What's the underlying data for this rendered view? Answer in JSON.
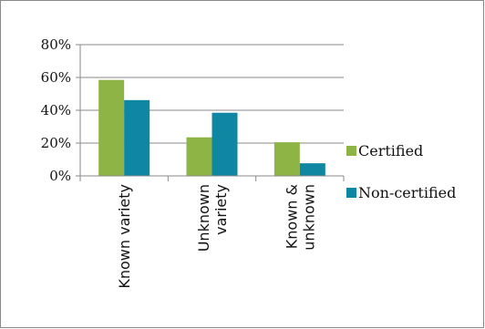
{
  "chart_data": {
    "type": "bar",
    "title": "",
    "xlabel": "",
    "ylabel": "",
    "categories": [
      "Known variety",
      "Unknown variety",
      "Known & unknown"
    ],
    "category_label_lines": [
      [
        "Known variety"
      ],
      [
        "Unknown",
        "variety"
      ],
      [
        "Known &",
        "unknown"
      ]
    ],
    "series": [
      {
        "name": "Certified",
        "color": "#8DB444",
        "values": [
          0.585,
          0.235,
          0.205
        ]
      },
      {
        "name": "Non-certified",
        "color": "#0F87A2",
        "values": [
          0.462,
          0.385,
          0.077
        ]
      }
    ],
    "ylim": [
      0,
      0.8
    ],
    "yticks": [
      0,
      0.2,
      0.4,
      0.6,
      0.8
    ],
    "ytick_labels": [
      "0%",
      "20%",
      "40%",
      "60%",
      "80%"
    ],
    "grid": true,
    "legend_position": "right"
  }
}
